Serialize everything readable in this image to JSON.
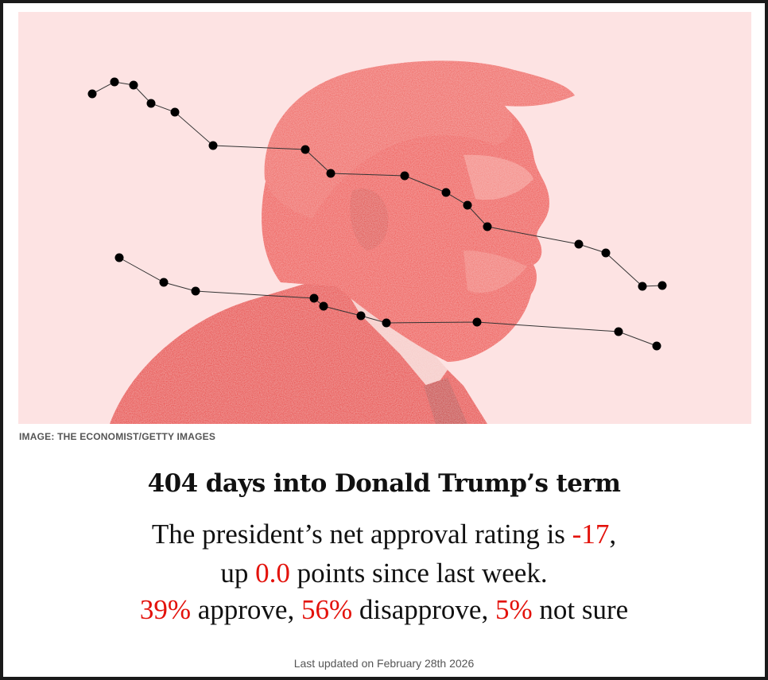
{
  "hero": {
    "caption": "IMAGE: THE ECONOMIST/GETTY IMAGES",
    "background_color": "#fde3e3",
    "portrait_color": "#ef4a43",
    "marker_color": "#000000"
  },
  "summary": {
    "headline": "404 days into Donald Trump’s term",
    "line1_prefix": "The president’s net approval rating is ",
    "net_approval": "-17",
    "line1_suffix": ",",
    "line2_prefix": "up ",
    "change": "0.0",
    "line2_suffix": " points since last week.",
    "approve": "39%",
    "approve_label": " approve, ",
    "disapprove": "56%",
    "disapprove_label": " disapprove, ",
    "not_sure": "5%",
    "not_sure_label": " not sure"
  },
  "footer": {
    "last_updated": "Last updated on February 28th 2026"
  },
  "colors": {
    "accent_red": "#e3120b",
    "text": "#111111",
    "muted": "#555555"
  }
}
